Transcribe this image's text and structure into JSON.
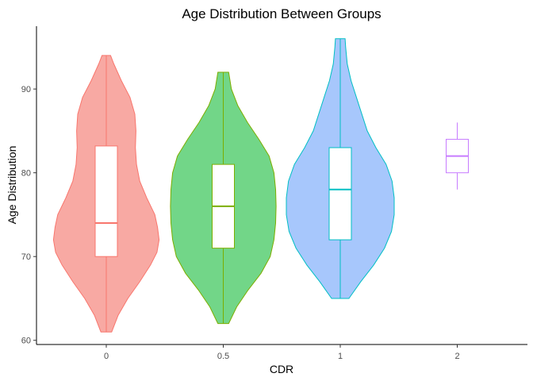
{
  "chart_data": {
    "type": "violin",
    "title": "Age Distribution Between Groups",
    "xlabel": "CDR",
    "ylabel": "Age Distribution",
    "categories": [
      "0",
      "0.5",
      "1",
      "2"
    ],
    "ylim": [
      59.5,
      97.5
    ],
    "yticks": [
      60,
      70,
      80,
      90
    ],
    "grid": false,
    "legend": "none",
    "groups": [
      {
        "category": "0",
        "color": "#F8766D",
        "fill": "#F8A9A3",
        "violin": [
          [
            61,
            0.1
          ],
          [
            63,
            0.22
          ],
          [
            65,
            0.4
          ],
          [
            67,
            0.62
          ],
          [
            69,
            0.82
          ],
          [
            70.5,
            0.94
          ],
          [
            72,
            0.98
          ],
          [
            73.5,
            0.95
          ],
          [
            75,
            0.9
          ],
          [
            77,
            0.75
          ],
          [
            79,
            0.62
          ],
          [
            81,
            0.56
          ],
          [
            83,
            0.54
          ],
          [
            85,
            0.55
          ],
          [
            87,
            0.53
          ],
          [
            89,
            0.44
          ],
          [
            91,
            0.28
          ],
          [
            93,
            0.14
          ],
          [
            94,
            0.08
          ]
        ],
        "box": {
          "q1": 70,
          "median": 74,
          "q3": 83.2,
          "min": 61,
          "max": 94
        }
      },
      {
        "category": "0.5",
        "color": "#7CAE00",
        "fill": "#72D688",
        "violin": [
          [
            62,
            0.1
          ],
          [
            64,
            0.25
          ],
          [
            66,
            0.46
          ],
          [
            68,
            0.7
          ],
          [
            70,
            0.87
          ],
          [
            72,
            0.94
          ],
          [
            74,
            0.97
          ],
          [
            76,
            0.98
          ],
          [
            78,
            0.97
          ],
          [
            80,
            0.94
          ],
          [
            82,
            0.85
          ],
          [
            84,
            0.66
          ],
          [
            86,
            0.45
          ],
          [
            88,
            0.27
          ],
          [
            90,
            0.15
          ],
          [
            92,
            0.1
          ]
        ],
        "box": {
          "q1": 71,
          "median": 76,
          "q3": 81,
          "min": 62,
          "max": 92
        }
      },
      {
        "category": "1",
        "color": "#00BFC4",
        "fill": "#A7C7FC",
        "violin": [
          [
            65,
            0.16
          ],
          [
            67,
            0.38
          ],
          [
            69,
            0.62
          ],
          [
            71,
            0.82
          ],
          [
            73,
            0.95
          ],
          [
            75,
            1.0
          ],
          [
            77,
            1.0
          ],
          [
            79,
            0.96
          ],
          [
            81,
            0.85
          ],
          [
            83,
            0.66
          ],
          [
            85,
            0.5
          ],
          [
            87,
            0.4
          ],
          [
            89,
            0.3
          ],
          [
            91,
            0.2
          ],
          [
            93,
            0.13
          ],
          [
            95,
            0.1
          ],
          [
            96,
            0.09
          ]
        ],
        "box": {
          "q1": 72,
          "median": 78,
          "q3": 83,
          "min": 65,
          "max": 96
        }
      },
      {
        "category": "2",
        "color": "#C77CFF",
        "fill": "none",
        "violin": [],
        "box": {
          "q1": 80,
          "median": 82,
          "q3": 84,
          "min": 78,
          "max": 86
        }
      }
    ]
  }
}
